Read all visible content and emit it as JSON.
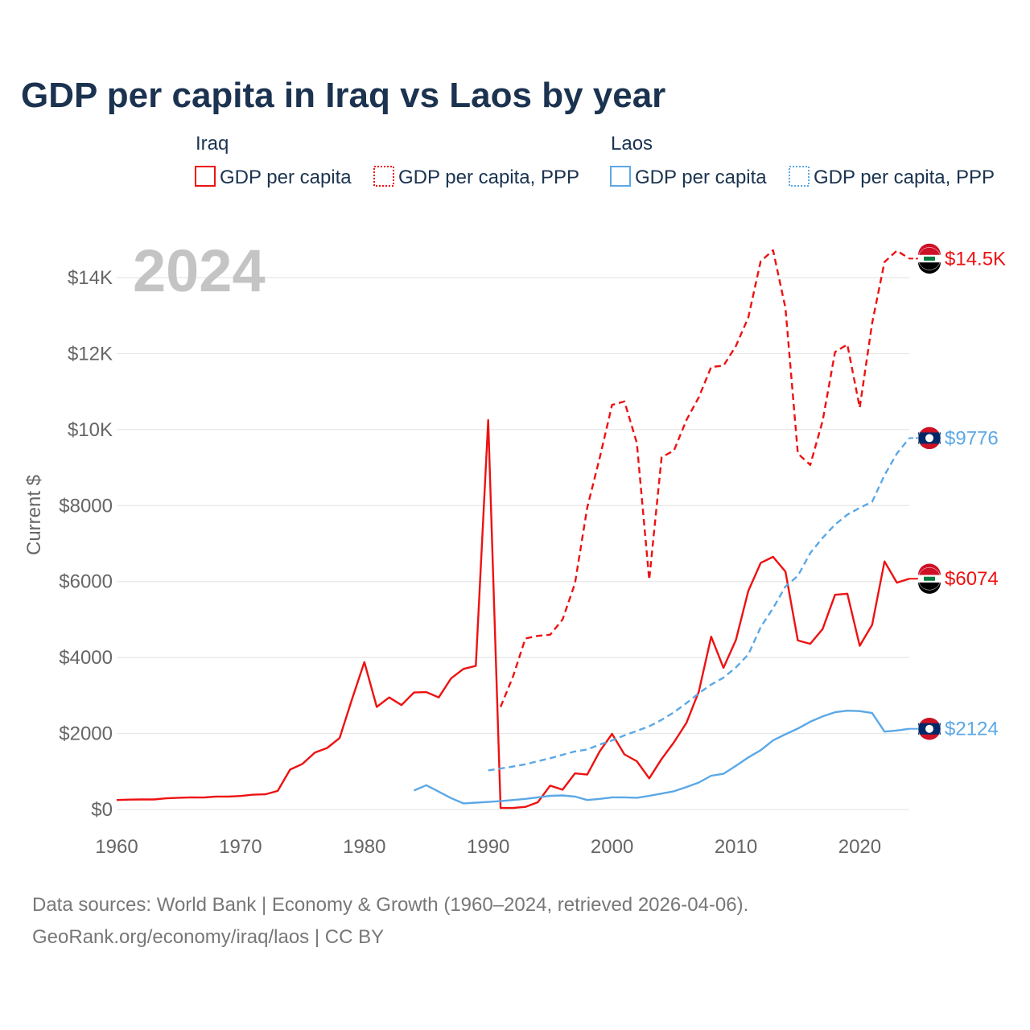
{
  "title": "GDP per capita in Iraq vs Laos by year",
  "year_watermark": "2024",
  "legend": {
    "groups": [
      {
        "name": "Iraq",
        "color": "#ee1111",
        "items": [
          {
            "label": "GDP per capita",
            "style": "solid"
          },
          {
            "label": "GDP per capita, PPP",
            "style": "dotted"
          }
        ]
      },
      {
        "name": "Laos",
        "color": "#5ba8e6",
        "items": [
          {
            "label": "GDP per capita",
            "style": "solid"
          },
          {
            "label": "GDP per capita, PPP",
            "style": "dotted"
          }
        ]
      }
    ]
  },
  "footer": {
    "line1": "Data sources: World Bank | Economy & Growth (1960–2024, retrieved 2026-04-06).",
    "line2": "GeoRank.org/economy/iraq/laos | CC BY"
  },
  "colors": {
    "iraq": "#ee1111",
    "laos": "#5ba8e6",
    "title": "#1b3350",
    "axis_text": "#666666",
    "grid": "#e6e6e6",
    "watermark": "#c4c4c4"
  },
  "flags": {
    "iraq": "iraq-flag-icon",
    "laos": "laos-flag-icon"
  },
  "chart_data": {
    "type": "line",
    "title": "GDP per capita in Iraq vs Laos by year",
    "xlabel": "",
    "ylabel": "Current $",
    "xlim": [
      1960,
      2024
    ],
    "ylim": [
      0,
      15000
    ],
    "x_ticks": [
      1960,
      1970,
      1980,
      1990,
      2000,
      2010,
      2020
    ],
    "y_ticks": [
      0,
      2000,
      4000,
      6000,
      8000,
      10000,
      12000,
      14000
    ],
    "y_tick_labels": [
      "$0",
      "$2000",
      "$4000",
      "$6000",
      "$8000",
      "$10K",
      "$12K",
      "$14K"
    ],
    "grid": true,
    "series": [
      {
        "name": "Iraq GDP per capita",
        "country": "iraq",
        "style": "solid",
        "end_label": "$6074",
        "x": [
          1960,
          1961,
          1962,
          1963,
          1964,
          1965,
          1966,
          1967,
          1968,
          1969,
          1970,
          1971,
          1972,
          1973,
          1974,
          1975,
          1976,
          1977,
          1978,
          1979,
          1980,
          1981,
          1982,
          1983,
          1984,
          1985,
          1986,
          1987,
          1988,
          1989,
          1990,
          1991,
          1992,
          1993,
          1994,
          1995,
          1996,
          1997,
          1998,
          1999,
          2000,
          2001,
          2002,
          2003,
          2004,
          2005,
          2006,
          2007,
          2008,
          2009,
          2010,
          2011,
          2012,
          2013,
          2014,
          2015,
          2016,
          2017,
          2018,
          2019,
          2020,
          2021,
          2022,
          2023,
          2024
        ],
        "values": [
          250,
          260,
          265,
          265,
          295,
          310,
          320,
          315,
          340,
          340,
          355,
          390,
          400,
          490,
          1050,
          1200,
          1500,
          1620,
          1880,
          2900,
          3880,
          2700,
          2950,
          2750,
          3080,
          3090,
          2950,
          3450,
          3700,
          3780,
          10250,
          40,
          40,
          70,
          190,
          630,
          520,
          950,
          920,
          1530,
          1990,
          1450,
          1270,
          820,
          1330,
          1770,
          2280,
          3100,
          4550,
          3730,
          4460,
          5750,
          6490,
          6650,
          6260,
          4450,
          4360,
          4750,
          5650,
          5680,
          4310,
          4860,
          6530,
          5970,
          6074
        ]
      },
      {
        "name": "Iraq GDP per capita, PPP",
        "country": "iraq",
        "style": "dotted",
        "end_label": "$14.5K",
        "x": [
          1991,
          1992,
          1993,
          1994,
          1995,
          1996,
          1997,
          1998,
          1999,
          2000,
          2001,
          2002,
          2003,
          2004,
          2005,
          2006,
          2007,
          2008,
          2009,
          2010,
          2011,
          2012,
          2013,
          2014,
          2015,
          2016,
          2017,
          2018,
          2019,
          2020,
          2021,
          2022,
          2023,
          2024
        ],
        "values": [
          2700,
          3500,
          4500,
          4570,
          4600,
          5000,
          5950,
          7950,
          9250,
          10650,
          10740,
          9650,
          6050,
          9270,
          9450,
          10250,
          10850,
          11650,
          11680,
          12200,
          12950,
          14430,
          14720,
          13200,
          9370,
          9070,
          10230,
          12040,
          12240,
          10580,
          12800,
          14410,
          14710,
          14500
        ]
      },
      {
        "name": "Laos GDP per capita",
        "country": "laos",
        "style": "solid",
        "end_label": "$2124",
        "x": [
          1984,
          1985,
          1986,
          1987,
          1988,
          1989,
          1990,
          1991,
          1992,
          1993,
          1994,
          1995,
          1996,
          1997,
          1998,
          1999,
          2000,
          2001,
          2002,
          2003,
          2004,
          2005,
          2006,
          2007,
          2008,
          2009,
          2010,
          2011,
          2012,
          2013,
          2014,
          2015,
          2016,
          2017,
          2018,
          2019,
          2020,
          2021,
          2022,
          2023,
          2024
        ],
        "values": [
          500,
          640,
          470,
          300,
          160,
          180,
          200,
          220,
          250,
          280,
          320,
          360,
          370,
          340,
          250,
          280,
          320,
          320,
          310,
          360,
          420,
          480,
          590,
          710,
          890,
          940,
          1150,
          1370,
          1560,
          1820,
          1980,
          2130,
          2310,
          2450,
          2560,
          2600,
          2590,
          2540,
          2050,
          2080,
          2124
        ]
      },
      {
        "name": "Laos GDP per capita, PPP",
        "country": "laos",
        "style": "dotted",
        "end_label": "$9776",
        "x": [
          1990,
          1991,
          1992,
          1993,
          1994,
          1995,
          1996,
          1997,
          1998,
          1999,
          2000,
          2001,
          2002,
          2003,
          2004,
          2005,
          2006,
          2007,
          2008,
          2009,
          2010,
          2011,
          2012,
          2013,
          2014,
          2015,
          2016,
          2017,
          2018,
          2019,
          2020,
          2021,
          2022,
          2023,
          2024
        ],
        "values": [
          1030,
          1080,
          1130,
          1190,
          1270,
          1350,
          1440,
          1530,
          1580,
          1710,
          1820,
          1950,
          2070,
          2190,
          2360,
          2560,
          2800,
          3060,
          3290,
          3470,
          3740,
          4080,
          4800,
          5300,
          5870,
          6150,
          6750,
          7150,
          7500,
          7760,
          7940,
          8100,
          8800,
          9370,
          9776
        ]
      }
    ]
  }
}
